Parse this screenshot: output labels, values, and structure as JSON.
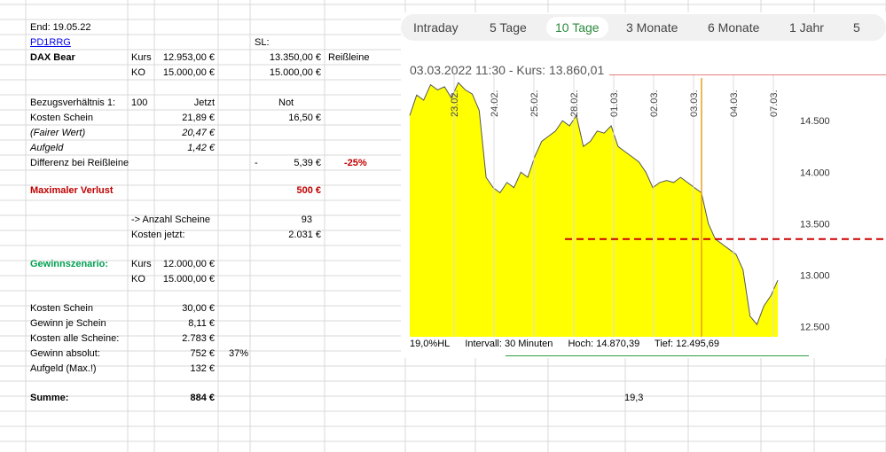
{
  "sheet": {
    "end_label": "End: 19.05.22",
    "ticker": "PD1RRG",
    "sl_label": "SL:",
    "dax_bear": "DAX Bear",
    "kurs_label": "Kurs",
    "kurs_value": "12.953,00 €",
    "sl_value": "13.350,00 €",
    "reissleine_label": "Reißleine",
    "ko_label": "KO",
    "ko_value": "15.000,00 €",
    "ko_value_2": "15.000,00 €",
    "bezug_label": "Bezugsverhältnis 1:",
    "bezug_value": "100",
    "jetzt_label": "Jetzt",
    "not_label": "Not",
    "kosten_schein_label": "Kosten Schein",
    "kosten_schein_jetzt": "21,89 €",
    "kosten_schein_not": "16,50 €",
    "fairer_wert_label": "(Fairer Wert)",
    "fairer_wert_value": "20,47 €",
    "aufgeld_label": "Aufgeld",
    "aufgeld_value": "1,42 €",
    "differenz_label": "Differenz bei Reißleine",
    "differenz_dash": "-",
    "differenz_value": "5,39 €",
    "differenz_pct": "-25%",
    "max_verlust_label": "Maximaler Verlust",
    "max_verlust_value": "500 €",
    "anzahl_label": "-> Anzahl Scheine",
    "anzahl_value": "93",
    "kosten_jetzt_label": "Kosten jetzt:",
    "kosten_jetzt_value": "2.031 €",
    "gewinn_szenario_label": "Gewinnszenario:",
    "gs_kurs_label": "Kurs",
    "gs_kurs_value": "12.000,00 €",
    "gs_ko_label": "KO",
    "gs_ko_value": "15.000,00 €",
    "ks_label": "Kosten Schein",
    "ks_value": "30,00 €",
    "gjs_label": "Gewinn je Schein",
    "gjs_value": "8,11 €",
    "kas_label": "Kosten alle Scheine:",
    "kas_value": "2.783 €",
    "ga_label": "Gewinn absolut:",
    "ga_value": "752 €",
    "ga_pct": "37%",
    "aufgeld_max_label": "Aufgeld (Max.!)",
    "aufgeld_max_value": "132 €",
    "summe_label": "Summe:",
    "summe_value": "884 €",
    "extra_value": "19,3"
  },
  "chart_widget": {
    "tabs": [
      "Intraday",
      "5 Tage",
      "10 Tage",
      "3 Monate",
      "6 Monate",
      "1 Jahr",
      "5"
    ],
    "active_tab": "10 Tage",
    "quote": "03.03.2022 11:30  -  Kurs: 13.860,01",
    "stats": {
      "hl": "19,0%HL",
      "interval": "Intervall: 30 Minuten",
      "high": "Hoch:  14.870,39",
      "low": "Tief:  12.495,69"
    },
    "fill_color": "#ffff00",
    "line_color": "#555555"
  },
  "chart_data": {
    "type": "area",
    "x_tick_labels": [
      "23.02.",
      "24.02.",
      "25.02.",
      "28.02.",
      "01.03.",
      "02.03.",
      "03.03.",
      "04.03.",
      "07.03."
    ],
    "y_tick_labels": [
      "14.500",
      "14.000",
      "13.500",
      "13.000",
      "12.500"
    ],
    "ylim": [
      12400,
      14950
    ],
    "values": [
      14550,
      14750,
      14700,
      14850,
      14800,
      14830,
      14720,
      14870,
      14800,
      14760,
      14600,
      13950,
      13850,
      13800,
      13900,
      13850,
      14000,
      13950,
      14150,
      14300,
      14350,
      14400,
      14500,
      14450,
      14550,
      14250,
      14300,
      14400,
      14380,
      14450,
      14250,
      14200,
      14150,
      14100,
      14000,
      13850,
      13900,
      13920,
      13900,
      13950,
      13900,
      13850,
      13800,
      13500,
      13350,
      13300,
      13250,
      13200,
      13050,
      12600,
      12520,
      12700,
      12800,
      12950
    ],
    "reference_lines": [
      {
        "value": 13350,
        "style": "dashed",
        "color": "#cc0000"
      },
      {
        "value": 14950,
        "style": "solid",
        "color": "#cc0000"
      }
    ],
    "current_marker_label": "03.03.",
    "grid": true
  }
}
